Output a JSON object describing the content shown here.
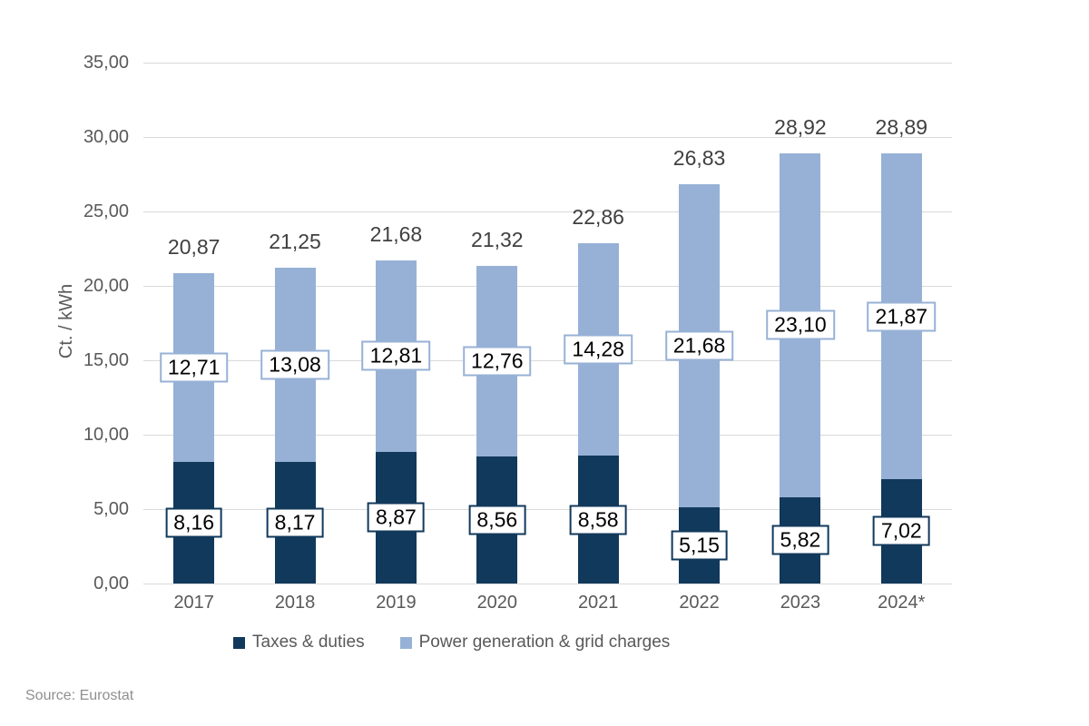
{
  "chart_data": {
    "type": "bar",
    "stacked": true,
    "categories": [
      "2017",
      "2018",
      "2019",
      "2020",
      "2021",
      "2022",
      "2023",
      "2024*"
    ],
    "series": [
      {
        "name": "Taxes & duties",
        "color": "#11395B",
        "values": [
          8.16,
          8.17,
          8.87,
          8.56,
          8.58,
          5.15,
          5.82,
          7.02
        ]
      },
      {
        "name": "Power generation & grid charges",
        "color": "#97B1D6",
        "values": [
          12.71,
          13.08,
          12.81,
          12.76,
          14.28,
          21.68,
          23.1,
          21.87
        ]
      }
    ],
    "totals": [
      20.87,
      21.25,
      21.68,
      21.32,
      22.86,
      26.83,
      28.92,
      28.89
    ],
    "xlabel": "",
    "ylabel": "Ct. / kWh",
    "ylim": [
      0,
      35
    ],
    "ytick_step": 5,
    "decimal_separator": ",",
    "grid": true,
    "legend_position": "bottom"
  },
  "colors": {
    "taxes": "#11395B",
    "power": "#97B1D6",
    "gridline": "#D9D9D9",
    "axis_text": "#595959",
    "total_text": "#404040",
    "value_text": "#000000",
    "label_box_bg": "#FFFFFF",
    "source_text": "#8F8F8F"
  },
  "source": "Source: Eurostat"
}
